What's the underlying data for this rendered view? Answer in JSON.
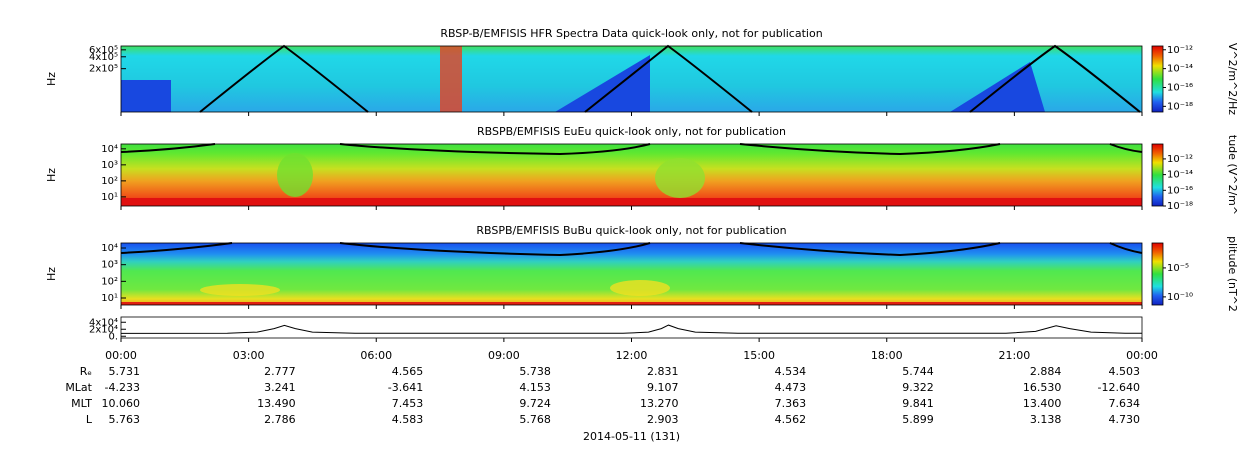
{
  "chart_data": [
    {
      "type": "spectrogram",
      "title": "RBSP-B/EMFISIS  HFR Spectra Data quick-look only, not for publication",
      "ylabel": "Hz",
      "log_y": true,
      "ylim": [
        16000,
        750000
      ],
      "yticks": [
        {
          "value": 200000,
          "label": "2x10⁵"
        },
        {
          "value": 400000,
          "label": "4x10⁵"
        },
        {
          "value": 600000,
          "label": "6x10⁵"
        }
      ],
      "colorbar_label": "V^2/m^2/Hz",
      "clim": [
        -18.6,
        -11.6
      ],
      "cticks": [
        {
          "value": -18,
          "label": "10⁻¹⁸"
        },
        {
          "value": -16,
          "label": "10⁻¹⁶"
        },
        {
          "value": -14,
          "label": "10⁻¹⁴"
        },
        {
          "value": -12,
          "label": "10⁻¹²"
        }
      ]
    },
    {
      "type": "spectrogram",
      "title": "RBSPB/EMFISIS  EuEu quick-look only, not for publication",
      "ylabel": "Hz",
      "log_y": true,
      "ylim": [
        2.7,
        20000
      ],
      "yticks": [
        {
          "value": 10,
          "label": "10¹"
        },
        {
          "value": 100,
          "label": "10²"
        },
        {
          "value": 1000,
          "label": "10³"
        },
        {
          "value": 10000,
          "label": "10⁴"
        }
      ],
      "colorbar_label": "tude (V^2/m^",
      "clim": [
        -18,
        -10.1
      ],
      "cticks": [
        {
          "value": -18,
          "label": "10⁻¹⁸"
        },
        {
          "value": -16,
          "label": "10⁻¹⁶"
        },
        {
          "value": -14,
          "label": "10⁻¹⁴"
        },
        {
          "value": -12,
          "label": "10⁻¹²"
        }
      ]
    },
    {
      "type": "spectrogram",
      "title": "RBSPB/EMFISIS  BuBu quick-look only, not for publication",
      "ylabel": "Hz",
      "log_y": true,
      "ylim": [
        3.8,
        20000
      ],
      "yticks": [
        {
          "value": 10,
          "label": "10¹"
        },
        {
          "value": 100,
          "label": "10²"
        },
        {
          "value": 1000,
          "label": "10³"
        },
        {
          "value": 10000,
          "label": "10⁴"
        }
      ],
      "colorbar_label": "plitude (nT^2",
      "clim": [
        -11.4,
        -0.7
      ],
      "cticks": [
        {
          "value": -10,
          "label": "10⁻¹⁰"
        },
        {
          "value": -5,
          "label": "10⁻⁵"
        }
      ]
    },
    {
      "type": "line",
      "color": "#000000",
      "ylim": [
        -5000,
        55000
      ],
      "yticks": [
        {
          "value": 0,
          "label": "0."
        },
        {
          "value": 20000,
          "label": "2x10⁴"
        },
        {
          "value": 40000,
          "label": "4x10⁴"
        }
      ],
      "x": [
        0,
        2.5,
        3.2,
        3.6,
        3.84,
        4.1,
        4.5,
        5.5,
        11.8,
        12.4,
        12.7,
        12.87,
        13.1,
        13.5,
        14.5,
        20.8,
        21.5,
        21.8,
        21.98,
        22.3,
        22.8,
        23.6,
        24
      ],
      "values": [
        8000,
        8500,
        12000,
        22000,
        31000,
        22000,
        12000,
        8500,
        8500,
        12000,
        22000,
        32000,
        22000,
        12000,
        8500,
        8500,
        14000,
        24000,
        30000,
        22000,
        12000,
        8500,
        8500
      ]
    }
  ],
  "time_axis": {
    "xlim": [
      0,
      24
    ],
    "xticks": [
      {
        "value": 0,
        "label": "00:00"
      },
      {
        "value": 3,
        "label": "03:00"
      },
      {
        "value": 6,
        "label": "06:00"
      },
      {
        "value": 9,
        "label": "09:00"
      },
      {
        "value": 12,
        "label": "12:00"
      },
      {
        "value": 15,
        "label": "15:00"
      },
      {
        "value": 18,
        "label": "18:00"
      },
      {
        "value": 21,
        "label": "21:00"
      },
      {
        "value": 24,
        "label": "00:00"
      }
    ],
    "date_label": "2014-05-11 (131)"
  },
  "ephemeris": {
    "rows": [
      {
        "label": "Rₑ",
        "values": [
          "5.731",
          "2.777",
          "4.565",
          "5.738",
          "2.831",
          "4.534",
          "5.744",
          "2.884",
          "4.503"
        ]
      },
      {
        "label": "MLat",
        "values": [
          "-4.233",
          "3.241",
          "-3.641",
          "4.153",
          "9.107",
          "4.473",
          "9.322",
          "16.530",
          "-12.640"
        ]
      },
      {
        "label": "MLT",
        "values": [
          "10.060",
          "13.490",
          "7.453",
          "9.724",
          "13.270",
          "7.363",
          "9.841",
          "13.400",
          "7.634"
        ]
      },
      {
        "label": "L",
        "values": [
          "5.763",
          "2.786",
          "4.583",
          "5.768",
          "2.903",
          "4.562",
          "5.899",
          "3.138",
          "4.730"
        ]
      }
    ]
  }
}
